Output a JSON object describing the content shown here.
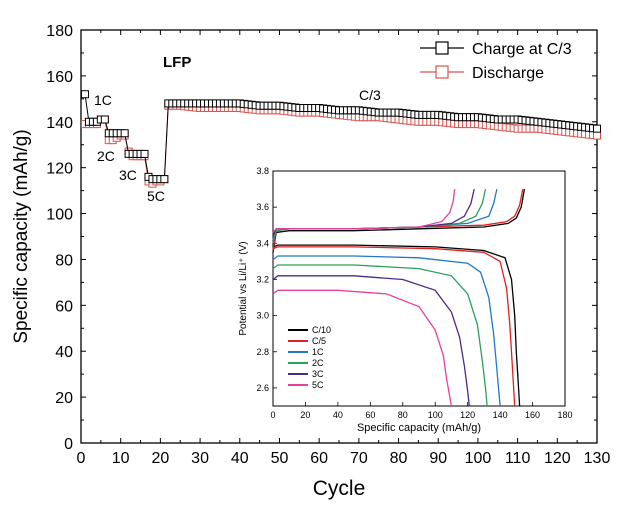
{
  "colors": {
    "charge": "#000000",
    "discharge": "#d9534f",
    "c10": "#000000",
    "c5": "#e02020",
    "c1": "#1f78c8",
    "c2": "#2ca05a",
    "c3": "#4b2a8a",
    "c5c": "#e8409a"
  },
  "chart_data": [
    {
      "type": "scatter",
      "xlabel": "Cycle",
      "ylabel": "Specific capacity (mAh/g)",
      "xlim": [
        0,
        130
      ],
      "ylim": [
        0,
        180
      ],
      "xticks": [
        "0",
        "10",
        "20",
        "30",
        "40",
        "50",
        "60",
        "70",
        "80",
        "90",
        "100",
        "110",
        "120",
        "130"
      ],
      "yticks": [
        "0",
        "20",
        "40",
        "60",
        "80",
        "100",
        "120",
        "140",
        "160",
        "180"
      ],
      "grid": false,
      "legend_position": "top-right",
      "annotations": [
        "LFP",
        "C/3",
        "1C",
        "2C",
        "3C",
        "5C"
      ],
      "series": [
        {
          "name": "Charge at C/3",
          "x": [
            1,
            2,
            3,
            4,
            5,
            6,
            7,
            8,
            9,
            10,
            11,
            12,
            13,
            14,
            15,
            16,
            17,
            18,
            19,
            20,
            21,
            22,
            25,
            30,
            35,
            40,
            45,
            50,
            55,
            60,
            65,
            70,
            75,
            80,
            85,
            90,
            95,
            100,
            105,
            110,
            115,
            120,
            125,
            130
          ],
          "y": [
            152,
            140,
            140,
            140,
            141,
            141,
            135,
            135,
            135,
            135,
            135,
            126,
            126,
            126,
            126,
            126,
            116,
            115,
            115,
            115,
            115,
            148,
            148,
            148,
            148,
            148,
            147,
            147,
            146,
            146,
            145,
            145,
            144,
            144,
            143,
            143,
            142,
            142,
            141,
            141,
            140,
            139,
            138,
            137
          ]
        },
        {
          "name": "Discharge",
          "x": [
            1,
            2,
            3,
            4,
            5,
            6,
            7,
            8,
            9,
            10,
            11,
            12,
            13,
            14,
            15,
            16,
            17,
            18,
            19,
            20,
            21,
            22,
            25,
            30,
            35,
            40,
            45,
            50,
            55,
            60,
            65,
            70,
            75,
            80,
            85,
            90,
            95,
            100,
            105,
            110,
            115,
            120,
            125,
            130
          ],
          "y": [
            139,
            139,
            139,
            139,
            141,
            141,
            132,
            132,
            133,
            134,
            134,
            127,
            125,
            125,
            125,
            125,
            114,
            113,
            114,
            114,
            115,
            147,
            147,
            146,
            146,
            146,
            145,
            145,
            144,
            144,
            143,
            142,
            142,
            141,
            140,
            140,
            139,
            139,
            138,
            137,
            137,
            136,
            135,
            134
          ]
        }
      ]
    },
    {
      "type": "line",
      "xlabel": "Specific capacity (mAh/g)",
      "ylabel": "Potential vs Li/Li⁺ (V)",
      "xlim": [
        0,
        180
      ],
      "ylim": [
        2.5,
        3.8
      ],
      "xticks": [
        "0",
        "20",
        "40",
        "60",
        "80",
        "100",
        "120",
        "140",
        "160",
        "180"
      ],
      "yticks": [
        "2.6",
        "2.8",
        "3.0",
        "3.2",
        "3.4",
        "3.6",
        "3.8"
      ],
      "grid": false,
      "legend_position": "bottom-left",
      "series": [
        {
          "name": "C/10",
          "charge": {
            "x": [
              0,
              2,
              10,
              50,
              90,
              130,
              145,
              150,
              153,
              155
            ],
            "y": [
              3.35,
              3.46,
              3.47,
              3.47,
              3.48,
              3.49,
              3.51,
              3.54,
              3.6,
              3.7
            ]
          },
          "discharge": {
            "x": [
              0,
              3,
              10,
              50,
              100,
              130,
              143,
              147,
              149,
              150,
              151,
              152
            ],
            "y": [
              3.38,
              3.39,
              3.39,
              3.39,
              3.38,
              3.36,
              3.32,
              3.2,
              3.0,
              2.8,
              2.65,
              2.5
            ]
          }
        },
        {
          "name": "C/5",
          "charge": {
            "x": [
              0,
              2,
              10,
              50,
              90,
              130,
              144,
              149,
              152,
              154
            ],
            "y": [
              3.36,
              3.47,
              3.48,
              3.48,
              3.49,
              3.5,
              3.52,
              3.55,
              3.61,
              3.7
            ]
          },
          "discharge": {
            "x": [
              0,
              3,
              10,
              50,
              100,
              130,
              140,
              144,
              146,
              147,
              148,
              149
            ],
            "y": [
              3.37,
              3.38,
              3.38,
              3.38,
              3.37,
              3.35,
              3.3,
              3.15,
              2.95,
              2.8,
              2.65,
              2.5
            ]
          }
        },
        {
          "name": "1C",
          "charge": {
            "x": [
              0,
              2,
              10,
              50,
              90,
              120,
              133,
              136,
              138
            ],
            "y": [
              3.4,
              3.48,
              3.48,
              3.48,
              3.49,
              3.51,
              3.55,
              3.62,
              3.7
            ]
          },
          "discharge": {
            "x": [
              0,
              3,
              10,
              50,
              90,
              120,
              128,
              133,
              136,
              138,
              139,
              140
            ],
            "y": [
              3.31,
              3.33,
              3.33,
              3.33,
              3.32,
              3.29,
              3.24,
              3.1,
              2.9,
              2.7,
              2.6,
              2.5
            ]
          }
        },
        {
          "name": "2C",
          "charge": {
            "x": [
              0,
              2,
              10,
              50,
              90,
              115,
              125,
              129,
              131
            ],
            "y": [
              3.42,
              3.47,
              3.48,
              3.48,
              3.49,
              3.51,
              3.55,
              3.62,
              3.7
            ]
          },
          "discharge": {
            "x": [
              0,
              3,
              10,
              50,
              90,
              110,
              120,
              126,
              129,
              131,
              132
            ],
            "y": [
              3.26,
              3.28,
              3.28,
              3.28,
              3.26,
              3.22,
              3.12,
              2.95,
              2.75,
              2.6,
              2.5
            ]
          }
        },
        {
          "name": "3C",
          "charge": {
            "x": [
              0,
              2,
              10,
              50,
              90,
              110,
              118,
              122,
              124
            ],
            "y": [
              3.44,
              3.48,
              3.48,
              3.48,
              3.49,
              3.51,
              3.55,
              3.62,
              3.7
            ]
          },
          "discharge": {
            "x": [
              0,
              3,
              10,
              50,
              80,
              100,
              110,
              115,
              118,
              120,
              121
            ],
            "y": [
              3.2,
              3.22,
              3.22,
              3.22,
              3.2,
              3.14,
              3.02,
              2.88,
              2.72,
              2.58,
              2.5
            ]
          }
        },
        {
          "name": "5C",
          "charge": {
            "x": [
              0,
              2,
              10,
              50,
              90,
              104,
              109,
              111,
              112
            ],
            "y": [
              3.46,
              3.48,
              3.48,
              3.48,
              3.49,
              3.52,
              3.57,
              3.63,
              3.7
            ]
          },
          "discharge": {
            "x": [
              0,
              3,
              10,
              40,
              70,
              90,
              100,
              105,
              107,
              109,
              110
            ],
            "y": [
              3.12,
              3.14,
              3.14,
              3.14,
              3.12,
              3.05,
              2.92,
              2.78,
              2.65,
              2.55,
              2.5
            ]
          }
        }
      ]
    }
  ]
}
